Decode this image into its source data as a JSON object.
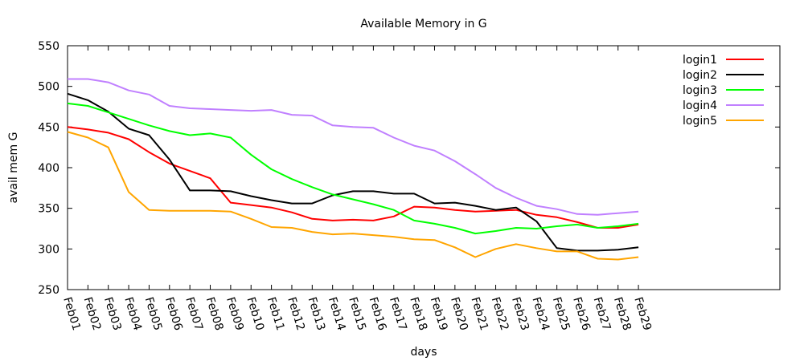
{
  "chart_data": {
    "type": "line",
    "title": "Available Memory in G",
    "xlabel": "days",
    "ylabel": "avail mem G",
    "ylim": [
      250,
      550
    ],
    "yticks": [
      250,
      300,
      350,
      400,
      450,
      500,
      550
    ],
    "grid": false,
    "legend_position": "top-right",
    "categories": [
      "Feb01",
      "Feb02",
      "Feb03",
      "Feb04",
      "Feb05",
      "Feb06",
      "Feb07",
      "Feb08",
      "Feb09",
      "Feb10",
      "Feb11",
      "Feb12",
      "Feb13",
      "Feb14",
      "Feb15",
      "Feb16",
      "Feb17",
      "Feb18",
      "Feb19",
      "Feb20",
      "Feb21",
      "Feb22",
      "Feb23",
      "Feb24",
      "Feb25",
      "Feb26",
      "Feb27",
      "Feb28",
      "Feb29"
    ],
    "series": [
      {
        "name": "login1",
        "color": "#ff0000",
        "values": [
          450,
          447,
          443,
          435,
          419,
          405,
          396,
          387,
          357,
          354,
          351,
          345,
          337,
          335,
          336,
          335,
          340,
          352,
          351,
          348,
          346,
          347,
          348,
          342,
          339,
          333,
          326,
          326,
          330
        ]
      },
      {
        "name": "login2",
        "color": "#000000",
        "values": [
          491,
          483,
          469,
          448,
          440,
          410,
          372,
          372,
          371,
          365,
          360,
          356,
          356,
          366,
          371,
          371,
          368,
          368,
          356,
          357,
          353,
          348,
          351,
          334,
          301,
          298,
          298,
          299,
          302
        ]
      },
      {
        "name": "login3",
        "color": "#00ff00",
        "values": [
          479,
          476,
          468,
          460,
          452,
          445,
          440,
          442,
          437,
          416,
          398,
          386,
          376,
          367,
          361,
          355,
          348,
          335,
          331,
          326,
          319,
          322,
          326,
          325,
          328,
          330,
          326,
          328,
          331
        ]
      },
      {
        "name": "login4",
        "color": "#c080ff",
        "values": [
          509,
          509,
          505,
          495,
          490,
          476,
          473,
          472,
          471,
          470,
          471,
          465,
          464,
          452,
          450,
          449,
          437,
          427,
          421,
          408,
          392,
          375,
          363,
          353,
          349,
          343,
          342,
          344,
          346
        ]
      },
      {
        "name": "login5",
        "color": "#ffa500",
        "values": [
          444,
          437,
          425,
          370,
          348,
          347,
          347,
          347,
          346,
          337,
          327,
          326,
          321,
          318,
          319,
          317,
          315,
          312,
          311,
          302,
          290,
          300,
          306,
          301,
          297,
          297,
          288,
          287,
          290
        ]
      }
    ]
  }
}
